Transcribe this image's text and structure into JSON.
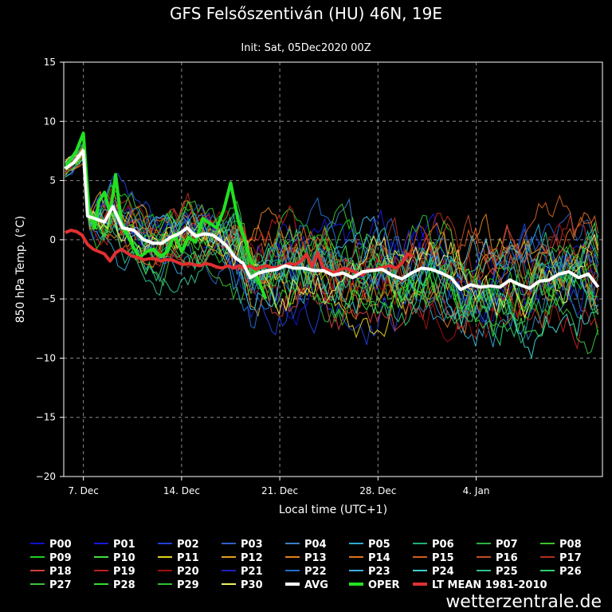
{
  "chart_data": {
    "type": "line",
    "title": "GFS Felsőszentiván (HU) 46N, 19E",
    "subtitle": "Init: Sat, 05Dec2020 00Z",
    "xlabel": "Local time (UTC+1)",
    "ylabel": "850 hPa Temp. (°C)",
    "x_unit": "days from 05 Dec 2020 00Z",
    "xlim": [
      0.6,
      39
    ],
    "ylim": [
      -20,
      15
    ],
    "yticks": [
      -20,
      -15,
      -10,
      -5,
      0,
      5,
      10,
      15
    ],
    "ytick_labels": [
      "−20",
      "−15",
      "−10",
      "−5",
      "0",
      "5",
      "10",
      "15"
    ],
    "xticks": [
      {
        "label": "7. Dec",
        "x": 2
      },
      {
        "label": "14. Dec",
        "x": 9
      },
      {
        "label": "21. Dec",
        "x": 16
      },
      {
        "label": "28. Dec",
        "x": 23
      },
      {
        "label": "4. Jan",
        "x": 30
      }
    ],
    "grid": true,
    "legend_position": "bottom",
    "ensemble_members": [
      "P00",
      "P01",
      "P02",
      "P03",
      "P04",
      "P05",
      "P06",
      "P07",
      "P08",
      "P09",
      "P10",
      "P11",
      "P12",
      "P13",
      "P14",
      "P15",
      "P16",
      "P17",
      "P18",
      "P19",
      "P20",
      "P21",
      "P22",
      "P23",
      "P24",
      "P25",
      "P26",
      "P27",
      "P28",
      "P29",
      "P30"
    ],
    "member_colors": [
      "#1010d0",
      "#1818e0",
      "#2040d8",
      "#3060c8",
      "#3a80c0",
      "#30a8d0",
      "#20b070",
      "#30b040",
      "#40c030",
      "#20d020",
      "#40e040",
      "#e0d020",
      "#e0a020",
      "#e08020",
      "#e07020",
      "#d06020",
      "#c05020",
      "#b03020",
      "#d04040",
      "#c02020",
      "#a01010",
      "#2020c0",
      "#2070d0",
      "#40b0e0",
      "#40d0d0",
      "#30c090",
      "#30d070",
      "#40c040",
      "#30e030",
      "#30c030",
      "#f0f060"
    ],
    "series": [
      {
        "name": "AVG",
        "color": "#ffffff",
        "x": [
          0.7,
          1.3,
          2,
          2.3,
          2.8,
          3.5,
          4.1,
          4.8,
          5.6,
          6.3,
          7,
          7.6,
          8.2,
          8.8,
          9.4,
          10,
          10.6,
          11.2,
          11.7,
          12.2,
          12.8,
          13.4,
          13.9,
          14.5,
          15.2,
          15.8,
          16.4,
          17,
          17.7,
          18.4,
          19.1,
          19.8,
          20.5,
          21.2,
          21.9,
          22.6,
          23.3,
          24,
          24.7,
          25.4,
          26.1,
          26.8,
          27.5,
          28.2,
          28.9,
          29.6,
          30.3,
          31,
          31.7,
          32.4,
          33.1,
          33.8,
          34.5,
          35.2,
          35.9,
          36.6,
          37.3,
          38,
          38.7
        ],
        "y": [
          6,
          6.5,
          7.5,
          2,
          1.8,
          1.5,
          2.8,
          1,
          0.8,
          0,
          -0.3,
          -0.3,
          0.2,
          0.5,
          1,
          0.3,
          0.5,
          0.4,
          0,
          -0.5,
          -1.5,
          -2,
          -3.2,
          -2.8,
          -2.6,
          -2.5,
          -2.2,
          -2.4,
          -2.4,
          -2.6,
          -2.6,
          -3,
          -2.8,
          -3.2,
          -2.7,
          -2.6,
          -2.5,
          -3,
          -3.3,
          -2.8,
          -2.4,
          -2.5,
          -2.8,
          -3.2,
          -4.2,
          -3.8,
          -4,
          -3.9,
          -4,
          -3.4,
          -3.8,
          -4.1,
          -3.5,
          -3.4,
          -2.9,
          -2.7,
          -3.2,
          -2.9,
          -4
        ]
      },
      {
        "name": "OPER",
        "color": "#22e022",
        "x": [
          0.7,
          1.1,
          1.5,
          2,
          2.4,
          2.8,
          3.1,
          3.5,
          3.9,
          4.3,
          4.7,
          5.1,
          5.5,
          6,
          6.5,
          7,
          7.5,
          8,
          8.5,
          9,
          9.5,
          10,
          10.5,
          11,
          11.5,
          12,
          12.5,
          13,
          13.5,
          14,
          14.5,
          15
        ],
        "y": [
          6,
          6.8,
          7.5,
          9,
          2.5,
          1,
          3.2,
          4,
          2.2,
          5.5,
          1.5,
          0.5,
          -0.5,
          -1.5,
          -1,
          -0.8,
          -1.4,
          -1,
          0.5,
          -1,
          0.2,
          -0.2,
          1.8,
          1.4,
          1,
          2.5,
          4.8,
          1.8,
          0,
          -2,
          -3.5,
          -5
        ]
      },
      {
        "name": "LT MEAN 1981-2010",
        "color": "#e03030",
        "x": [
          0.7,
          1.1,
          1.5,
          1.9,
          2.3,
          2.7,
          3.1,
          3.5,
          3.9,
          4.3,
          4.7,
          5.1,
          5.5,
          5.9,
          6.3,
          6.7,
          7.1,
          7.5,
          7.9,
          8.3,
          8.7,
          9.1,
          9.5,
          9.9,
          10.3,
          10.7,
          11.1,
          11.5,
          11.9,
          12.3,
          12.7,
          13.1,
          13.5,
          13.9,
          14.3,
          14.7,
          15.1,
          15.5,
          15.9,
          16.3,
          16.7,
          17.1,
          17.5,
          17.9,
          18.3,
          18.7,
          19.1,
          19.5,
          19.9,
          20.3,
          20.7,
          21.1,
          21.5,
          21.9,
          22.3,
          22.7,
          23.1,
          23.5,
          23.9,
          24.3,
          24.7,
          25.1,
          25.5
        ],
        "y": [
          0.6,
          0.8,
          0.7,
          0.4,
          -0.4,
          -0.8,
          -1,
          -1.2,
          -1.8,
          -1.1,
          -0.8,
          -1.1,
          -1.4,
          -1.5,
          -1.7,
          -1.6,
          -1.6,
          -1.8,
          -1.7,
          -1.7,
          -1.9,
          -2.1,
          -2,
          -2.1,
          -2.2,
          -2,
          -2.1,
          -2.3,
          -2.4,
          -2.2,
          -2.4,
          -2.2,
          -2.4,
          -2.2,
          -2.5,
          -2.3,
          -2.2,
          -2.4,
          -2.3,
          -2.2,
          -2,
          -2.1,
          -1.8,
          -1.2,
          -2.3,
          -1.1,
          -2.4,
          -2.6,
          -2.8,
          -2.5,
          -2.4,
          -2.6,
          -2.8,
          -3,
          -2.5,
          -2.6,
          -2.4,
          -2.3,
          -2.2,
          -2.4,
          -2,
          -1.2,
          -1.4
        ]
      }
    ]
  }
}
